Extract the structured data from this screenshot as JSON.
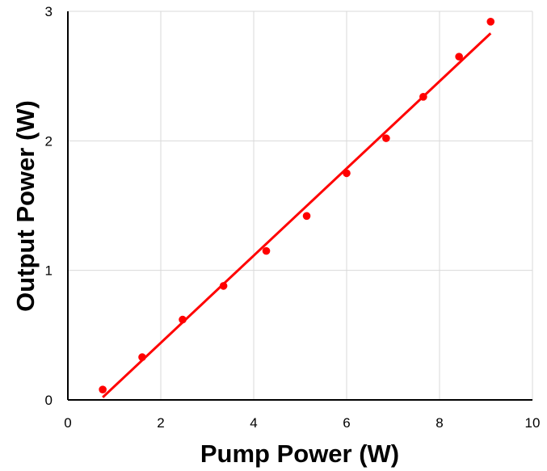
{
  "chart_data": {
    "type": "scatter",
    "xlabel": "Pump Power (W)",
    "ylabel": "Output Power (W)",
    "xlim": [
      0,
      10
    ],
    "ylim": [
      0,
      3
    ],
    "x_ticks": [
      "0",
      "2",
      "4",
      "6",
      "8",
      "10"
    ],
    "y_ticks": [
      "0",
      "1",
      "2",
      "3"
    ],
    "grid": true,
    "series": [
      {
        "color": "#ff0000",
        "points": [
          {
            "x": 0.75,
            "y": 0.08
          },
          {
            "x": 1.6,
            "y": 0.33
          },
          {
            "x": 2.47,
            "y": 0.62
          },
          {
            "x": 3.35,
            "y": 0.88
          },
          {
            "x": 4.27,
            "y": 1.15
          },
          {
            "x": 5.14,
            "y": 1.42
          },
          {
            "x": 6.0,
            "y": 1.75
          },
          {
            "x": 6.85,
            "y": 2.02
          },
          {
            "x": 7.65,
            "y": 2.34
          },
          {
            "x": 8.42,
            "y": 2.65
          },
          {
            "x": 9.1,
            "y": 2.92
          }
        ]
      }
    ],
    "fit_line": {
      "color": "#ff0000",
      "start": {
        "x": 0.75,
        "y": 0.02
      },
      "end": {
        "x": 9.1,
        "y": 2.83
      }
    }
  }
}
